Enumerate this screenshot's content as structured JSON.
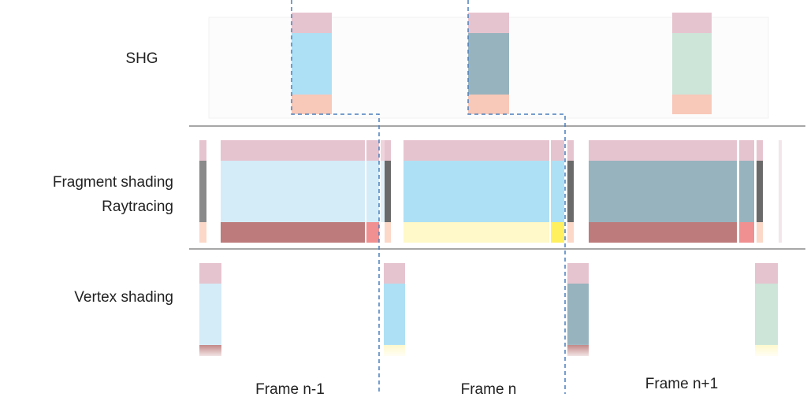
{
  "lanes": [
    {
      "label": "SHG"
    },
    {
      "label": "Fragment shading"
    },
    {
      "label": "Raytracing"
    },
    {
      "label": "Vertex shading"
    }
  ],
  "frames": [
    {
      "label": "Frame n-1"
    },
    {
      "label": "Frame n"
    },
    {
      "label": "Frame n+1"
    }
  ]
}
